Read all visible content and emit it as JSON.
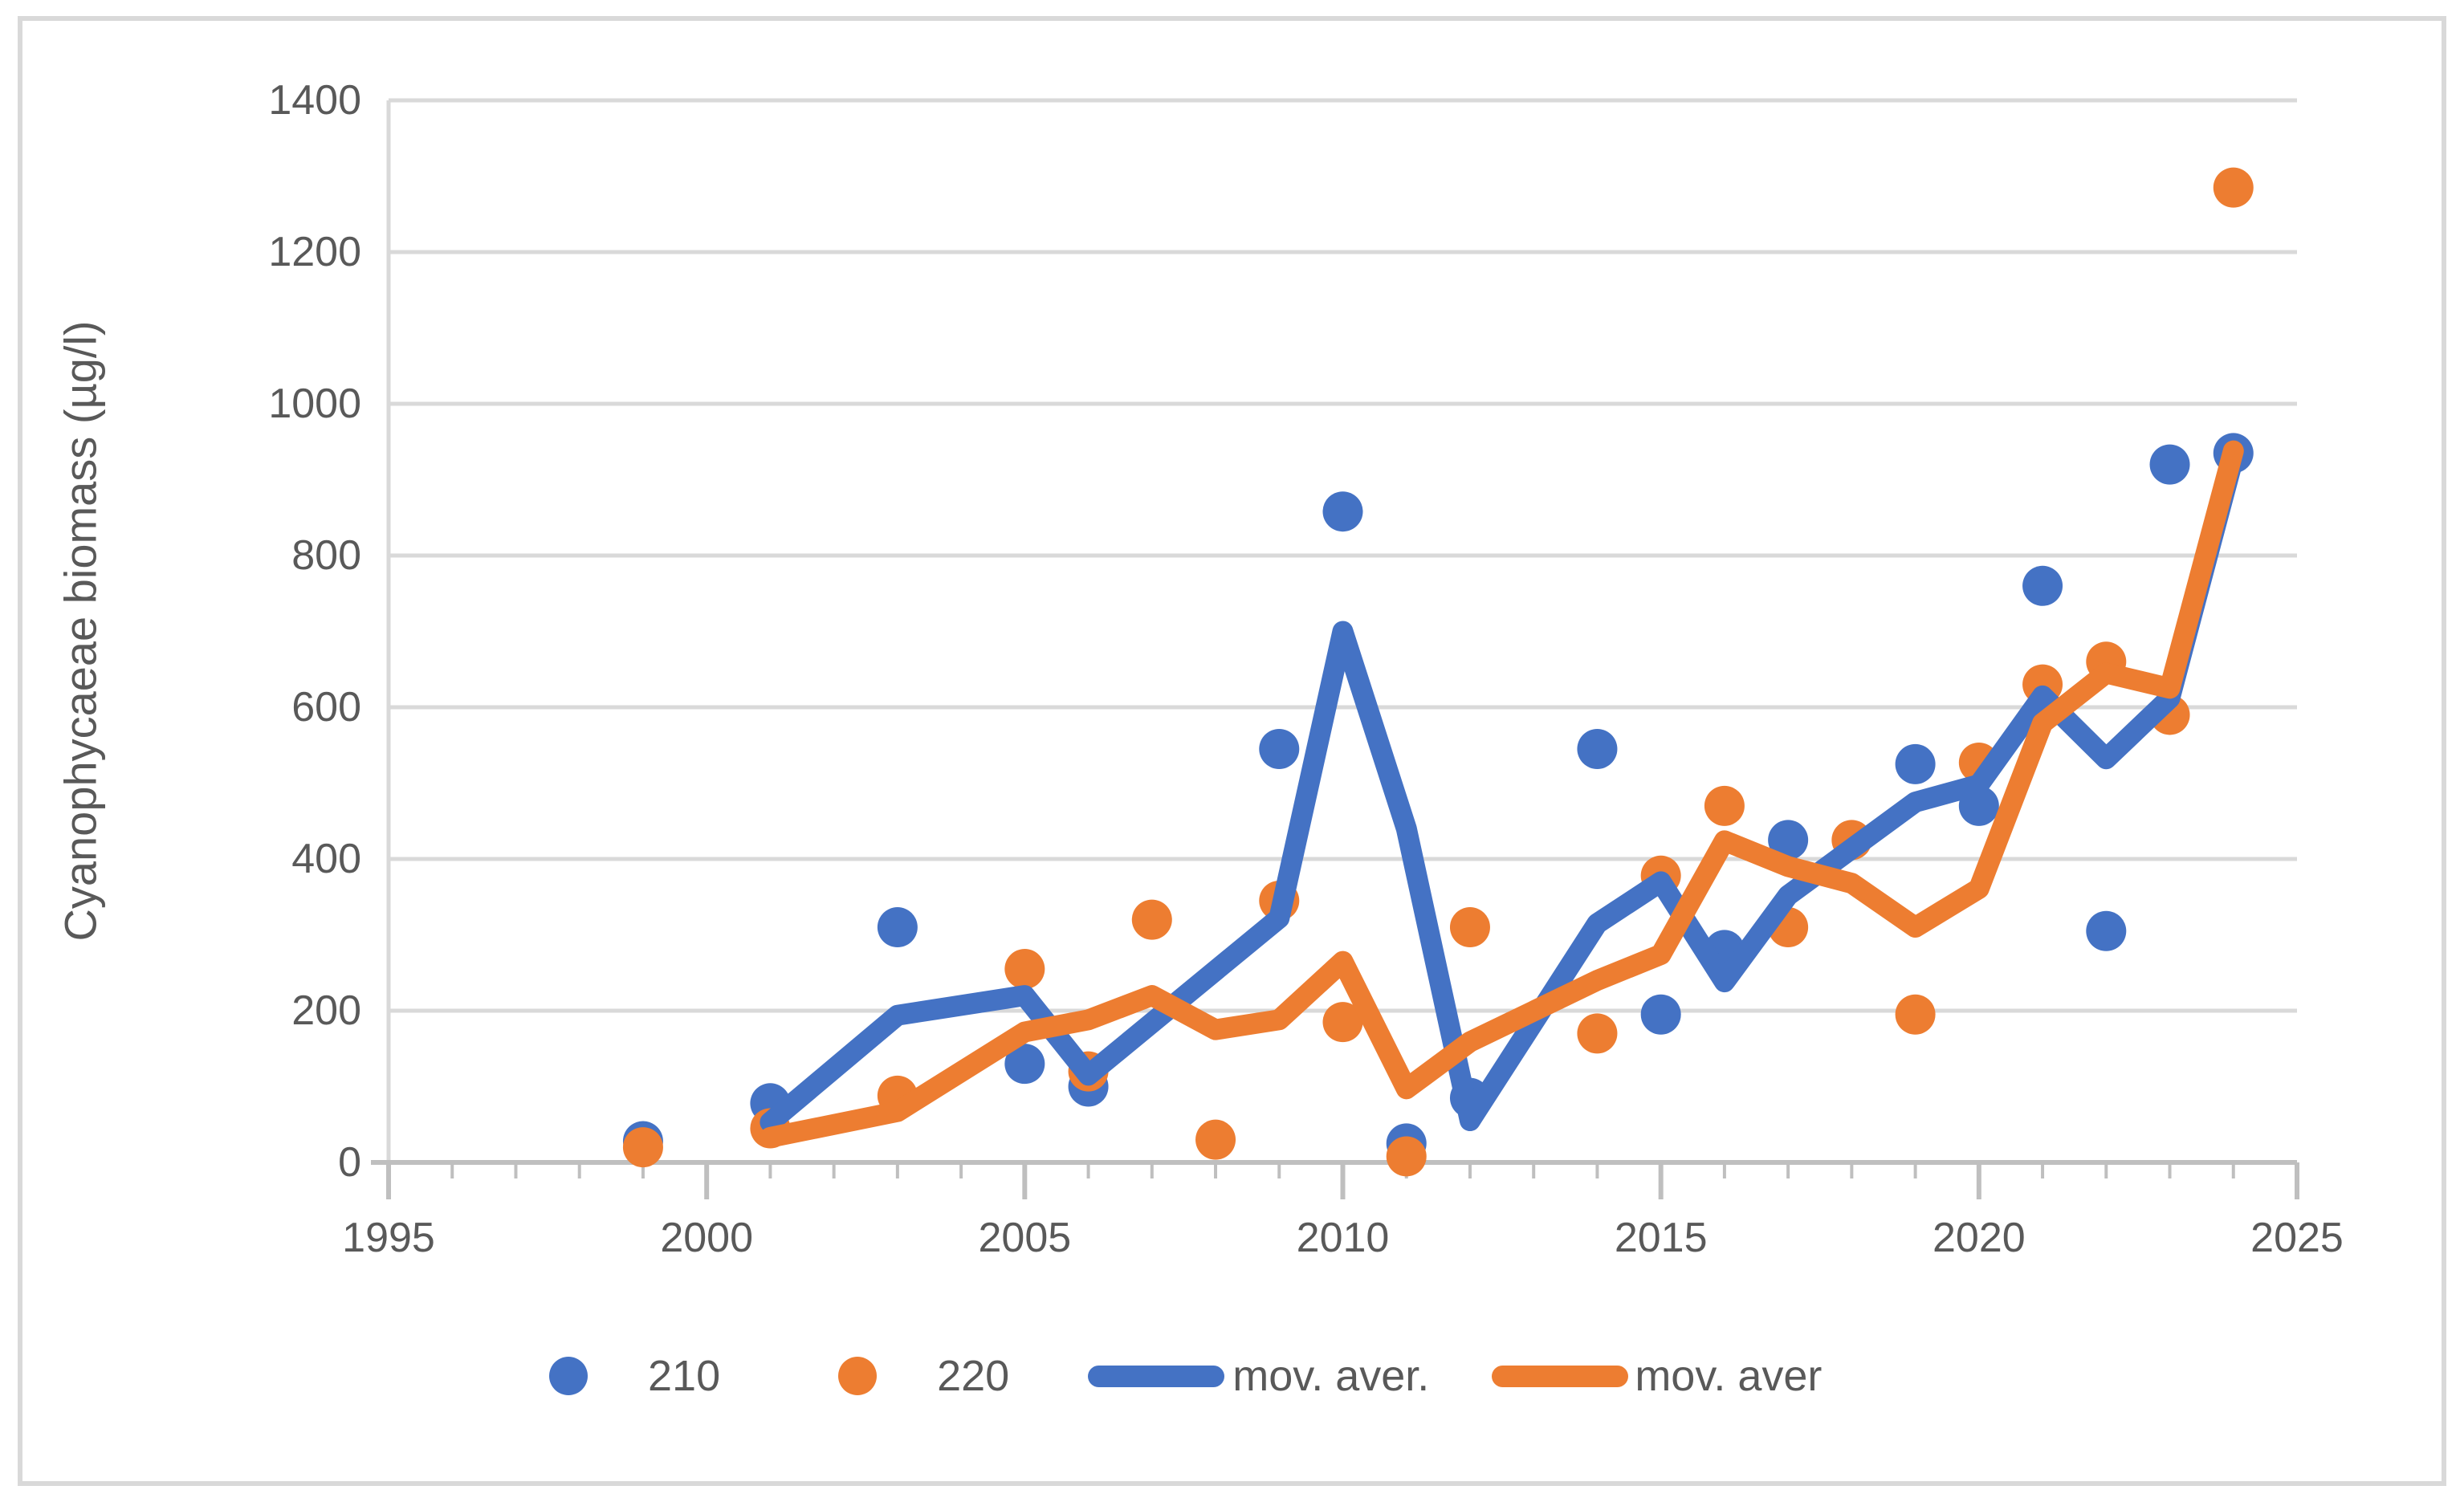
{
  "page": {
    "background": "#FFFFFF",
    "border_color": "#D9D9D9"
  },
  "chart_data": {
    "type": "scatter",
    "title": "",
    "ylabel": "Cyanophycaeae biomass (µg/l)",
    "xlabel": "",
    "xlim": [
      1995,
      2025
    ],
    "ylim": [
      0,
      1400
    ],
    "x_ticks": [
      "1995",
      "2000",
      "2005",
      "2010",
      "2015",
      "2020",
      "2025"
    ],
    "x_tick_years": [
      1995,
      2000,
      2005,
      2010,
      2015,
      2020,
      2025
    ],
    "x_minor_tick_step": 1,
    "y_ticks": [
      "0",
      "200",
      "400",
      "600",
      "800",
      "1000",
      "1200",
      "1400"
    ],
    "y_tick_values": [
      0,
      200,
      400,
      600,
      800,
      1000,
      1200,
      1400
    ],
    "grid": "horizontal-only",
    "legend_position": "bottom",
    "colors": {
      "blue": "#4472C4",
      "orange": "#ED7D31",
      "gridline": "#D9D9D9",
      "axis": "#BFBFBF",
      "text": "#595959"
    },
    "series": [
      {
        "name": "210",
        "type": "scatter",
        "color": "#4472C4",
        "marker_radius": 25,
        "points": [
          [
            1999,
            28
          ],
          [
            2001,
            78
          ],
          [
            2003,
            310
          ],
          [
            2005,
            130
          ],
          [
            2006,
            100
          ],
          [
            2009,
            545
          ],
          [
            2010,
            858
          ],
          [
            2011,
            25
          ],
          [
            2012,
            85
          ],
          [
            2014,
            545
          ],
          [
            2015,
            195
          ],
          [
            2016,
            280
          ],
          [
            2017,
            425
          ],
          [
            2019,
            525
          ],
          [
            2020,
            470
          ],
          [
            2021,
            760
          ],
          [
            2022,
            305
          ],
          [
            2023,
            920
          ],
          [
            2024,
            935
          ]
        ]
      },
      {
        "name": "220",
        "type": "scatter",
        "color": "#ED7D31",
        "marker_radius": 25,
        "points": [
          [
            1999,
            20
          ],
          [
            2001,
            45
          ],
          [
            2003,
            88
          ],
          [
            2005,
            255
          ],
          [
            2006,
            120
          ],
          [
            2007,
            320
          ],
          [
            2008,
            30
          ],
          [
            2009,
            345
          ],
          [
            2010,
            185
          ],
          [
            2011,
            8
          ],
          [
            2012,
            310
          ],
          [
            2014,
            170
          ],
          [
            2015,
            378
          ],
          [
            2016,
            470
          ],
          [
            2017,
            310
          ],
          [
            2018,
            425
          ],
          [
            2019,
            195
          ],
          [
            2020,
            527
          ],
          [
            2021,
            630
          ],
          [
            2022,
            660
          ],
          [
            2023,
            590
          ],
          [
            2024,
            1285
          ]
        ]
      },
      {
        "name": "mov. aver.",
        "type": "line",
        "color": "#4472C4",
        "line_width": 26,
        "points": [
          [
            2001,
            53
          ],
          [
            2003,
            194
          ],
          [
            2005,
            220
          ],
          [
            2006,
            115
          ],
          [
            2009,
            322
          ],
          [
            2010,
            700
          ],
          [
            2011,
            440
          ],
          [
            2012,
            55
          ],
          [
            2014,
            315
          ],
          [
            2015,
            370
          ],
          [
            2016,
            238
          ],
          [
            2017,
            352
          ],
          [
            2019,
            475
          ],
          [
            2020,
            498
          ],
          [
            2021,
            615
          ],
          [
            2022,
            532
          ],
          [
            2023,
            612
          ],
          [
            2024,
            928
          ]
        ]
      },
      {
        "name": "mov. aver",
        "type": "line",
        "color": "#ED7D31",
        "line_width": 26,
        "points": [
          [
            2001,
            33
          ],
          [
            2003,
            67
          ],
          [
            2005,
            172
          ],
          [
            2006,
            188
          ],
          [
            2007,
            220
          ],
          [
            2008,
            175
          ],
          [
            2009,
            188
          ],
          [
            2010,
            265
          ],
          [
            2011,
            97
          ],
          [
            2012,
            159
          ],
          [
            2014,
            240
          ],
          [
            2015,
            274
          ],
          [
            2016,
            424
          ],
          [
            2017,
            390
          ],
          [
            2018,
            368
          ],
          [
            2019,
            310
          ],
          [
            2020,
            361
          ],
          [
            2021,
            579
          ],
          [
            2022,
            645
          ],
          [
            2023,
            625
          ],
          [
            2024,
            938
          ]
        ]
      }
    ],
    "legend": [
      {
        "marker": "dot",
        "color": "#4472C4",
        "label": "210"
      },
      {
        "marker": "dot",
        "color": "#ED7D31",
        "label": "220"
      },
      {
        "marker": "line",
        "color": "#4472C4",
        "label": "mov. aver."
      },
      {
        "marker": "line",
        "color": "#ED7D31",
        "label": "mov. aver"
      }
    ]
  }
}
